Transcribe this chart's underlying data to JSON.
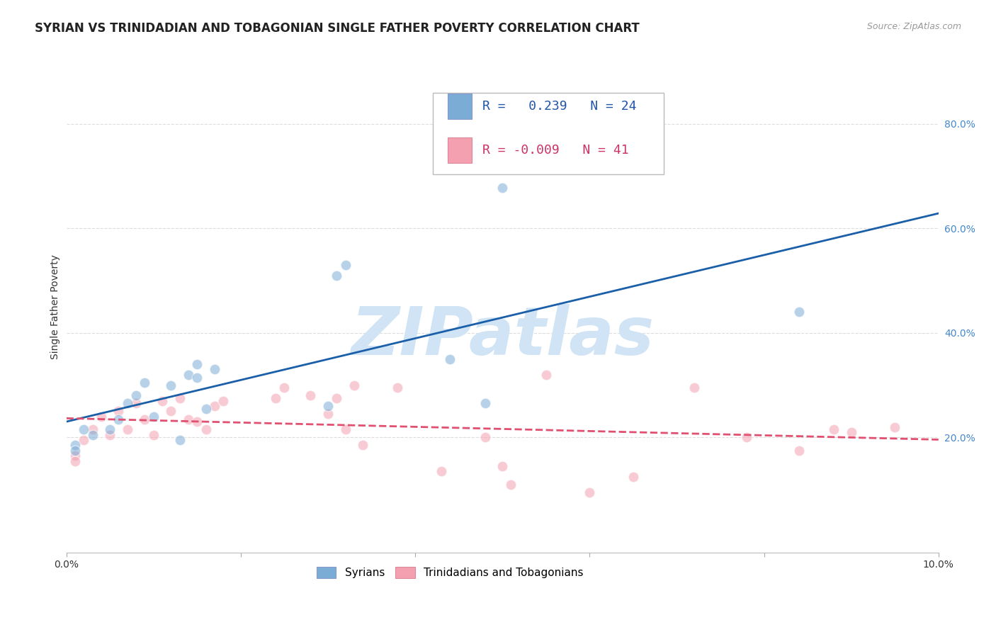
{
  "title": "SYRIAN VS TRINIDADIAN AND TOBAGONIAN SINGLE FATHER POVERTY CORRELATION CHART",
  "source": "Source: ZipAtlas.com",
  "ylabel": "Single Father Poverty",
  "ytick_values": [
    0.2,
    0.4,
    0.6,
    0.8
  ],
  "xlim": [
    0.0,
    0.1
  ],
  "ylim": [
    -0.02,
    0.92
  ],
  "background_color": "#ffffff",
  "grid_color": "#dddddd",
  "watermark_text": "ZIPatlas",
  "watermark_color": "#d0e4f5",
  "legend_R_syrian": " 0.239",
  "legend_N_syrian": "24",
  "legend_R_tnt": "-0.009",
  "legend_N_tnt": "41",
  "syrian_color": "#7aacd6",
  "tnt_color": "#f4a0b0",
  "syrian_line_color": "#1a5fa8",
  "tnt_line_color": "#e05070",
  "legend_label_syrian": "Syrians",
  "legend_label_tnt": "Trinidadians and Tobagonians",
  "syrian_x": [
    0.001,
    0.001,
    0.002,
    0.003,
    0.005,
    0.006,
    0.007,
    0.008,
    0.009,
    0.01,
    0.012,
    0.013,
    0.014,
    0.015,
    0.015,
    0.016,
    0.017,
    0.03,
    0.031,
    0.032,
    0.044,
    0.048,
    0.05,
    0.084
  ],
  "syrian_y": [
    0.185,
    0.175,
    0.215,
    0.205,
    0.215,
    0.235,
    0.265,
    0.28,
    0.305,
    0.24,
    0.3,
    0.195,
    0.32,
    0.315,
    0.34,
    0.255,
    0.33,
    0.26,
    0.51,
    0.53,
    0.35,
    0.265,
    0.678,
    0.44
  ],
  "tnt_x": [
    0.001,
    0.001,
    0.002,
    0.003,
    0.004,
    0.005,
    0.006,
    0.007,
    0.008,
    0.009,
    0.01,
    0.011,
    0.012,
    0.013,
    0.014,
    0.015,
    0.016,
    0.017,
    0.018,
    0.024,
    0.025,
    0.028,
    0.03,
    0.031,
    0.032,
    0.033,
    0.034,
    0.038,
    0.043,
    0.048,
    0.05,
    0.051,
    0.055,
    0.06,
    0.065,
    0.072,
    0.078,
    0.084,
    0.088,
    0.09,
    0.095
  ],
  "tnt_y": [
    0.165,
    0.155,
    0.195,
    0.215,
    0.24,
    0.205,
    0.25,
    0.215,
    0.265,
    0.235,
    0.205,
    0.27,
    0.25,
    0.275,
    0.235,
    0.23,
    0.215,
    0.26,
    0.27,
    0.275,
    0.295,
    0.28,
    0.245,
    0.275,
    0.215,
    0.3,
    0.185,
    0.295,
    0.135,
    0.2,
    0.145,
    0.11,
    0.32,
    0.095,
    0.125,
    0.295,
    0.2,
    0.175,
    0.215,
    0.21,
    0.22
  ],
  "title_fontsize": 12,
  "axis_label_fontsize": 10,
  "tick_fontsize": 10,
  "dot_size": 110,
  "dot_alpha": 0.55,
  "dot_linewidth": 1.0
}
